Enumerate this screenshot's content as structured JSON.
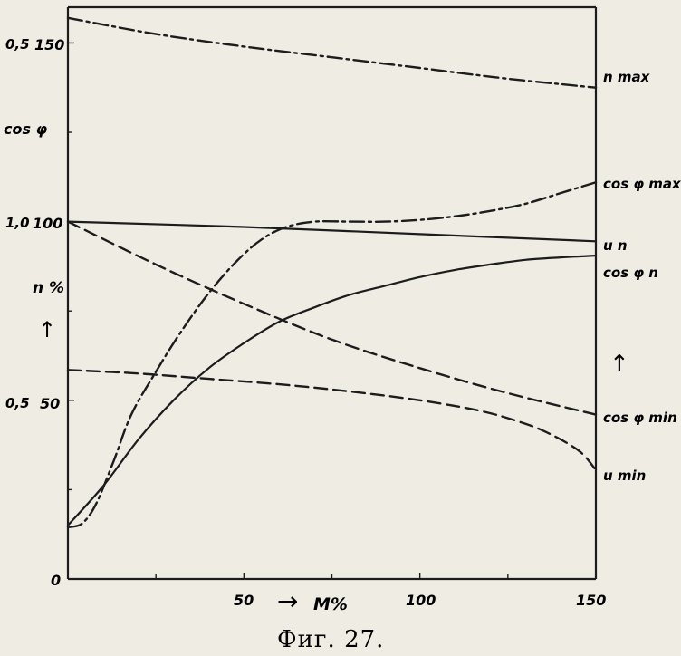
{
  "chart_data": {
    "type": "line",
    "title": "",
    "caption": "Фиг. 27.",
    "xlabel": "M%",
    "xlim": [
      0,
      150
    ],
    "x_ticks": [
      "50",
      "100",
      "150"
    ],
    "x_tick_values": [
      50,
      100,
      150
    ],
    "left_axis_n": {
      "label": "n %",
      "ylim": [
        0,
        160
      ],
      "ticks": [
        "0",
        "50",
        "100",
        "150"
      ],
      "tick_values": [
        0,
        50,
        100,
        150
      ]
    },
    "left_axis_cos": {
      "label": "cos φ",
      "ticks": [
        "0,5",
        "1,0",
        "0,5"
      ],
      "tick_values_n_scale": [
        50,
        100,
        150
      ]
    },
    "grid": false,
    "series": [
      {
        "name": "n max",
        "style": "dash-dot",
        "x": [
          0,
          25,
          50,
          75,
          100,
          125,
          150
        ],
        "y": [
          157,
          152.5,
          149,
          146,
          143,
          140,
          137.5
        ]
      },
      {
        "name": "cos φ max",
        "style": "dash-dot",
        "x": [
          0,
          4,
          8,
          13,
          18,
          25,
          32,
          40,
          48,
          55,
          62,
          70,
          80,
          90,
          100,
          110,
          120,
          130,
          140,
          150
        ],
        "y": [
          14.5,
          15.5,
          21,
          33,
          46,
          58,
          69,
          80,
          89,
          95,
          98.5,
          100,
          100,
          100,
          100.5,
          101.5,
          103,
          105,
          108,
          111
        ]
      },
      {
        "name": "u n",
        "style": "solid",
        "x": [
          0,
          50,
          100,
          150
        ],
        "y": [
          100,
          98.5,
          96.5,
          94.5
        ]
      },
      {
        "name": "cos φ n",
        "style": "solid",
        "x": [
          0,
          10,
          20,
          30,
          40,
          50,
          60,
          70,
          80,
          90,
          100,
          110,
          120,
          130,
          140,
          150
        ],
        "y": [
          15,
          26,
          39,
          50,
          59,
          66,
          72,
          76,
          79.5,
          82,
          84.5,
          86.5,
          88,
          89.3,
          90,
          90.5
        ]
      },
      {
        "name": "cos φ min",
        "style": "dashed",
        "x": [
          0,
          25,
          50,
          75,
          100,
          125,
          150
        ],
        "y": [
          100,
          88,
          77,
          67,
          59,
          52,
          46
        ]
      },
      {
        "name": "u min",
        "style": "dashed",
        "x": [
          0,
          20,
          40,
          60,
          80,
          100,
          115,
          125,
          135,
          145,
          150
        ],
        "y": [
          58.5,
          57.5,
          56,
          54.5,
          52.5,
          50,
          47.5,
          45,
          41.5,
          36,
          30.5
        ]
      }
    ],
    "annotations": [
      {
        "text": "↑",
        "near": "left axis, below n %"
      },
      {
        "text": "↑",
        "near": "right side, between cos φ n and cos φ min"
      },
      {
        "text": "→",
        "near": "before x-axis label M%"
      }
    ]
  },
  "colors": {
    "paper": "#efece4",
    "ink": "#1c1c1c"
  }
}
